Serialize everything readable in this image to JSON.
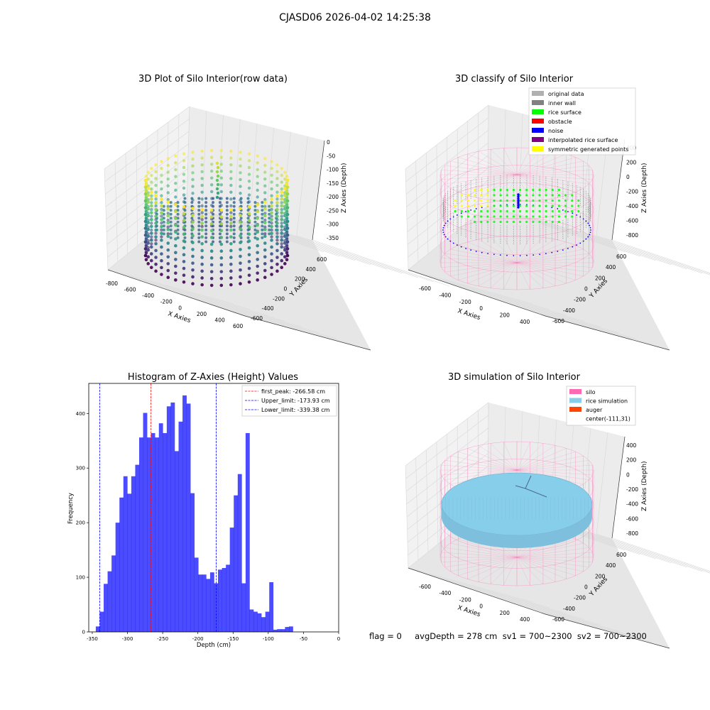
{
  "figure": {
    "suptitle": "CJASD06 2026-04-02 14:25:38",
    "footer": "flag = 0     avgDepth = 278 cm  sv1 = 700~2300  sv2 = 700~2300"
  },
  "panel1": {
    "title": "3D Plot of Silo Interior(row data)",
    "xlabel": "X Axies",
    "ylabel": "Y Axies",
    "zlabel": "Z Axies (Depth)",
    "xticks": [
      "-800",
      "-600",
      "-400",
      "-200",
      "0",
      "200",
      "400",
      "600"
    ],
    "yticks": [
      "-600",
      "-400",
      "-200",
      "0",
      "200",
      "400",
      "600"
    ],
    "zticks": [
      "0",
      "-50",
      "-100",
      "-150",
      "-200",
      "-250",
      "-300",
      "-350"
    ]
  },
  "panel2": {
    "title": "3D classify of Silo Interior",
    "xlabel": "X Axies",
    "ylabel": "Y Axies",
    "zlabel": "Z Axies (Depth)",
    "xticks": [
      "-600",
      "-400",
      "-200",
      "0",
      "200",
      "400"
    ],
    "yticks": [
      "-600",
      "-400",
      "-200",
      "0",
      "200",
      "400",
      "600"
    ],
    "zticks": [
      "400",
      "200",
      "0",
      "-200",
      "-400",
      "-600",
      "-800"
    ],
    "legend": [
      {
        "label": "original data",
        "color": "#b0b0b0"
      },
      {
        "label": "inner wall",
        "color": "#808080"
      },
      {
        "label": "rice surface",
        "color": "#00ff00"
      },
      {
        "label": "obstacle",
        "color": "#ff0000"
      },
      {
        "label": "noise",
        "color": "#0000ff"
      },
      {
        "label": "interpolated rice surface",
        "color": "#800080"
      },
      {
        "label": "symmetric generated points",
        "color": "#ffff00"
      }
    ]
  },
  "panel4": {
    "title": "3D simulation of Silo Interior",
    "xlabel": "X Axies",
    "ylabel": "Y Axies",
    "zlabel": "Z Axies (Depth)",
    "xticks": [
      "-600",
      "-400",
      "-200",
      "0",
      "200",
      "400"
    ],
    "yticks": [
      "-600",
      "-400",
      "-200",
      "0",
      "200",
      "400",
      "600"
    ],
    "zticks": [
      "400",
      "200",
      "0",
      "-200",
      "-400",
      "-600",
      "-800"
    ],
    "legend": [
      {
        "label": "silo",
        "color": "#ff69b4"
      },
      {
        "label": "rice simulation",
        "color": "#87ceeb"
      },
      {
        "label": "auger",
        "color": "#ff4500"
      },
      {
        "label": "center(-111,31)",
        "color": ""
      }
    ]
  },
  "chart_data": {
    "type": "bar",
    "title": "Histogram of Z-Axies (Height) Values",
    "xlabel": "Depth (cm)",
    "ylabel": "Frequency",
    "xlim": [
      -355,
      0
    ],
    "ylim": [
      0,
      455
    ],
    "xticks": [
      -350,
      -300,
      -250,
      -200,
      -150,
      -100,
      -50,
      0
    ],
    "yticks": [
      0,
      100,
      200,
      300,
      400
    ],
    "bar_color": "#0000ff",
    "bin_start": -345,
    "bin_width": 5.6,
    "values": [
      10,
      37,
      88,
      111,
      140,
      200,
      246,
      285,
      253,
      285,
      306,
      356,
      401,
      356,
      364,
      356,
      382,
      364,
      413,
      420,
      331,
      385,
      433,
      418,
      254,
      136,
      105,
      105,
      97,
      109,
      89,
      114,
      117,
      123,
      191,
      250,
      289,
      89,
      364,
      41,
      37,
      34,
      27,
      37,
      91,
      4,
      5,
      5,
      9,
      10
    ],
    "vlines": [
      {
        "label": "first_peak: -266.58 cm",
        "x": -266.58,
        "color": "#ff0000"
      },
      {
        "label": "Upper_limit: -173.93 cm",
        "x": -173.93,
        "color": "#0000ff"
      },
      {
        "label": "Lower_limit: -339.38 cm",
        "x": -339.38,
        "color": "#0000ff"
      }
    ]
  }
}
